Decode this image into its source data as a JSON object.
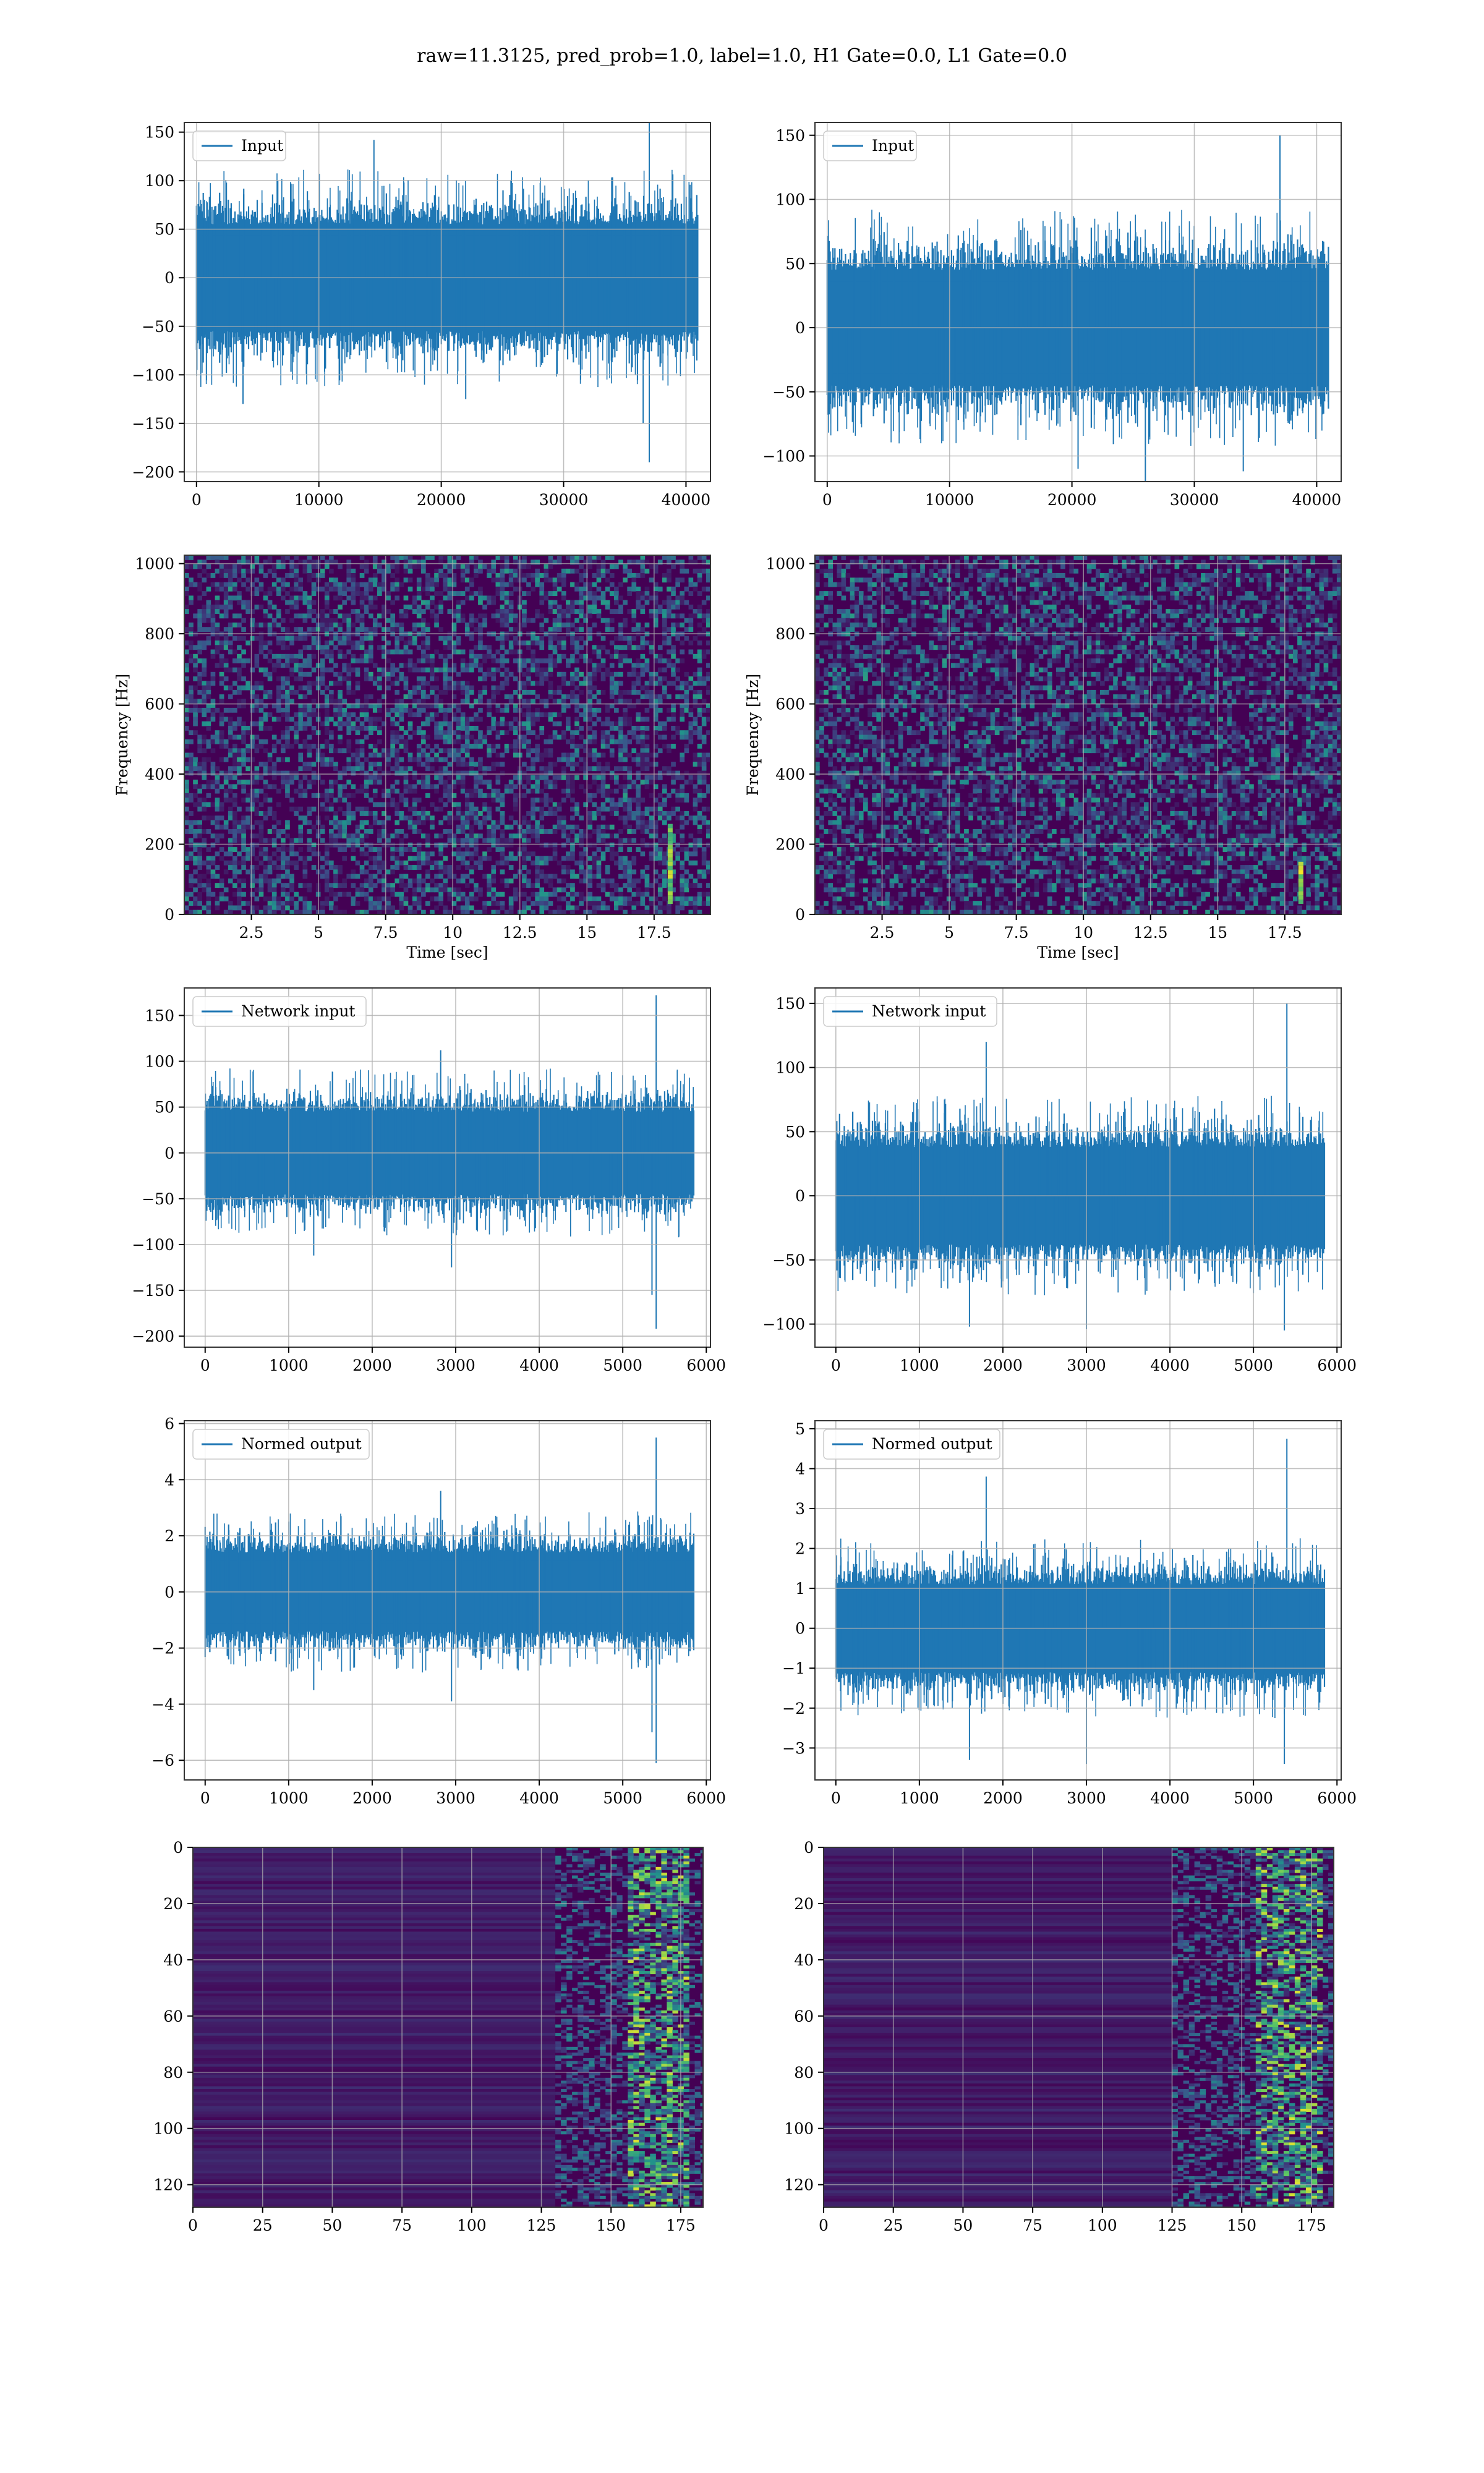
{
  "figure": {
    "title": "raw=11.3125, pred_prob=1.0, label=1.0, H1 Gate=0.0, L1 Gate=0.0"
  },
  "colors": {
    "line": "#1f77b4",
    "grid": "#b0b0b0",
    "viridis_low": "#440154",
    "viridis_mid": "#21918c",
    "viridis_high": "#fde725"
  },
  "chart_data": [
    {
      "type": "line",
      "legend": "Input",
      "legend_position": "top-left",
      "xlim": [
        -1000,
        42000
      ],
      "ylim": [
        -210,
        160
      ],
      "xticks": [
        0,
        10000,
        20000,
        30000,
        40000
      ],
      "yticks": [
        -200,
        -150,
        -100,
        -50,
        0,
        50,
        100,
        150
      ],
      "grid": true,
      "x_end": 40960,
      "band": [
        -55,
        55
      ],
      "spikes": [
        {
          "x": 37000,
          "y": 172
        },
        {
          "x": 37000,
          "y": -190
        },
        {
          "x": 14500,
          "y": 142
        },
        {
          "x": 3800,
          "y": -130
        },
        {
          "x": 22000,
          "y": -125
        },
        {
          "x": 36500,
          "y": -150
        }
      ]
    },
    {
      "type": "line",
      "legend": "Input",
      "legend_position": "top-left",
      "xlim": [
        -1000,
        42000
      ],
      "ylim": [
        -120,
        160
      ],
      "xticks": [
        0,
        10000,
        20000,
        30000,
        40000
      ],
      "yticks": [
        -100,
        -50,
        0,
        50,
        100,
        150
      ],
      "grid": true,
      "x_end": 40960,
      "band": [
        -45,
        45
      ],
      "spikes": [
        {
          "x": 37000,
          "y": 150
        },
        {
          "x": 26000,
          "y": -120
        },
        {
          "x": 20500,
          "y": -110
        },
        {
          "x": 34000,
          "y": -112
        }
      ]
    },
    {
      "type": "heatmap",
      "xlabel": "Time [sec]",
      "ylabel": "Frequency [Hz]",
      "xlim": [
        0,
        19.6
      ],
      "ylim": [
        0,
        1024
      ],
      "xticks": [
        2.5,
        5.0,
        7.5,
        10.0,
        12.5,
        15.0,
        17.5
      ],
      "yticks": [
        0,
        200,
        400,
        600,
        800,
        1000
      ],
      "grid": true,
      "bright_track": {
        "t": 18.1,
        "f_min": 30,
        "f_max": 250
      }
    },
    {
      "type": "heatmap",
      "xlabel": "Time [sec]",
      "ylabel": "Frequency [Hz]",
      "xlim": [
        0,
        19.6
      ],
      "ylim": [
        0,
        1024
      ],
      "xticks": [
        2.5,
        5.0,
        7.5,
        10.0,
        12.5,
        15.0,
        17.5
      ],
      "yticks": [
        0,
        200,
        400,
        600,
        800,
        1000
      ],
      "grid": true,
      "bright_track": {
        "t": 18.1,
        "f_min": 30,
        "f_max": 140
      }
    },
    {
      "type": "line",
      "legend": "Network input",
      "legend_position": "top-left",
      "xlim": [
        -250,
        6050
      ],
      "ylim": [
        -212,
        180
      ],
      "xticks": [
        0,
        1000,
        2000,
        3000,
        4000,
        5000,
        6000
      ],
      "yticks": [
        -200,
        -150,
        -100,
        -50,
        0,
        50,
        100,
        150
      ],
      "grid": true,
      "x_end": 5850,
      "band": [
        -45,
        45
      ],
      "spikes": [
        {
          "x": 5400,
          "y": 172
        },
        {
          "x": 5400,
          "y": -192
        },
        {
          "x": 5350,
          "y": -155
        },
        {
          "x": 2820,
          "y": 112
        },
        {
          "x": 2950,
          "y": -125
        },
        {
          "x": 1300,
          "y": -112
        }
      ]
    },
    {
      "type": "line",
      "legend": "Network input",
      "legend_position": "top-left",
      "xlim": [
        -250,
        6050
      ],
      "ylim": [
        -118,
        162
      ],
      "xticks": [
        0,
        1000,
        2000,
        3000,
        4000,
        5000,
        6000
      ],
      "yticks": [
        -100,
        -50,
        0,
        50,
        100,
        150
      ],
      "grid": true,
      "x_end": 5850,
      "band": [
        -38,
        38
      ],
      "spikes": [
        {
          "x": 5400,
          "y": 150
        },
        {
          "x": 1800,
          "y": 120
        },
        {
          "x": 5370,
          "y": -105
        },
        {
          "x": 3000,
          "y": -104
        },
        {
          "x": 1600,
          "y": -102
        }
      ]
    },
    {
      "type": "line",
      "legend": "Normed output",
      "legend_position": "top-left",
      "xlim": [
        -250,
        6050
      ],
      "ylim": [
        -6.7,
        6.1
      ],
      "xticks": [
        0,
        1000,
        2000,
        3000,
        4000,
        5000,
        6000
      ],
      "yticks": [
        -6,
        -4,
        -2,
        0,
        2,
        4,
        6
      ],
      "grid": true,
      "x_end": 5850,
      "band": [
        -1.4,
        1.4
      ],
      "spikes": [
        {
          "x": 5400,
          "y": 5.5
        },
        {
          "x": 5400,
          "y": -6.1
        },
        {
          "x": 5350,
          "y": -5.0
        },
        {
          "x": 2820,
          "y": 3.6
        },
        {
          "x": 2950,
          "y": -3.9
        },
        {
          "x": 1300,
          "y": -3.5
        }
      ]
    },
    {
      "type": "line",
      "legend": "Normed output",
      "legend_position": "top-left",
      "xlim": [
        -250,
        6050
      ],
      "ylim": [
        -3.8,
        5.2
      ],
      "xticks": [
        0,
        1000,
        2000,
        3000,
        4000,
        5000,
        6000
      ],
      "yticks": [
        -3,
        -2,
        -1,
        0,
        1,
        2,
        3,
        4,
        5
      ],
      "grid": true,
      "x_end": 5850,
      "band": [
        -1.1,
        1.1
      ],
      "spikes": [
        {
          "x": 5400,
          "y": 4.75
        },
        {
          "x": 1800,
          "y": 3.8
        },
        {
          "x": 5370,
          "y": -3.4
        },
        {
          "x": 3000,
          "y": -3.4
        },
        {
          "x": 1600,
          "y": -3.3
        }
      ]
    },
    {
      "type": "heatmap",
      "xlim": [
        0,
        183
      ],
      "ylim": [
        128,
        0
      ],
      "xticks": [
        0,
        25,
        50,
        75,
        100,
        125,
        150,
        175
      ],
      "yticks": [
        0,
        20,
        40,
        60,
        80,
        100,
        120
      ],
      "grid": true,
      "active_from": 130,
      "peak_from": 155
    },
    {
      "type": "heatmap",
      "xlim": [
        0,
        183
      ],
      "ylim": [
        128,
        0
      ],
      "xticks": [
        0,
        25,
        50,
        75,
        100,
        125,
        150,
        175
      ],
      "yticks": [
        0,
        20,
        40,
        60,
        80,
        100,
        120
      ],
      "grid": true,
      "active_from": 125,
      "peak_from": 155
    }
  ]
}
